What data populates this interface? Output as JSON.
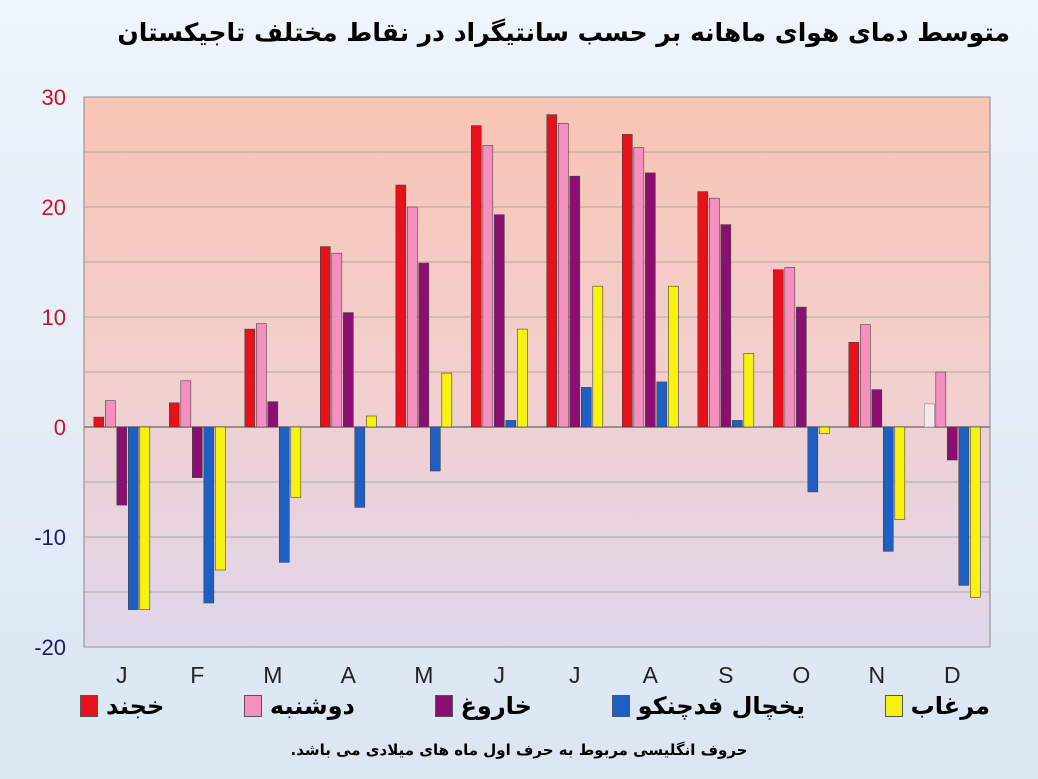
{
  "chart_data": {
    "type": "bar",
    "title": "متوسط دمای هوای ماهانه بر حسب سانتیگراد در نقاط مختلف تاجیکستان",
    "categories": [
      "J",
      "F",
      "M",
      "A",
      "M",
      "J",
      "J",
      "A",
      "S",
      "O",
      "N",
      "D"
    ],
    "ylim": [
      -20,
      30
    ],
    "yticks": [
      30,
      20,
      10,
      0,
      -10,
      -20
    ],
    "grid": true,
    "legend_position": "bottom",
    "series": [
      {
        "name": "خجند",
        "color": "#e8101a",
        "values": [
          0.9,
          2.2,
          8.9,
          16.4,
          22.0,
          27.4,
          28.4,
          26.6,
          21.4,
          14.3,
          7.7,
          2.1
        ]
      },
      {
        "name": "دوشنبه",
        "color": "#f58fc0",
        "values": [
          2.4,
          4.2,
          9.4,
          15.8,
          20.0,
          25.6,
          27.6,
          25.4,
          20.8,
          14.5,
          9.3,
          5.0
        ]
      },
      {
        "name": "خاروغ",
        "color": "#8b0f72",
        "values": [
          -7.1,
          -4.6,
          2.3,
          10.4,
          14.9,
          19.3,
          22.8,
          23.1,
          18.4,
          10.9,
          3.4,
          -3.0
        ]
      },
      {
        "name": "یخچال فدچنکو",
        "color": "#1e5fc4",
        "values": [
          -16.6,
          -16.0,
          -12.3,
          -7.3,
          -4.0,
          0.6,
          3.6,
          4.1,
          0.6,
          -5.9,
          -11.3,
          -14.4
        ]
      },
      {
        "name": "مرغاب",
        "color": "#f7f210",
        "values": [
          -16.6,
          -13.0,
          -6.4,
          1.0,
          4.9,
          8.9,
          12.8,
          12.8,
          6.7,
          -0.6,
          -8.4,
          -15.5
        ]
      }
    ],
    "hollow_bars": [
      {
        "series": 0,
        "index": 11
      }
    ]
  },
  "footnote": "حروف انگلیسی مربوط به حرف اول ماه های میلادی می باشد."
}
